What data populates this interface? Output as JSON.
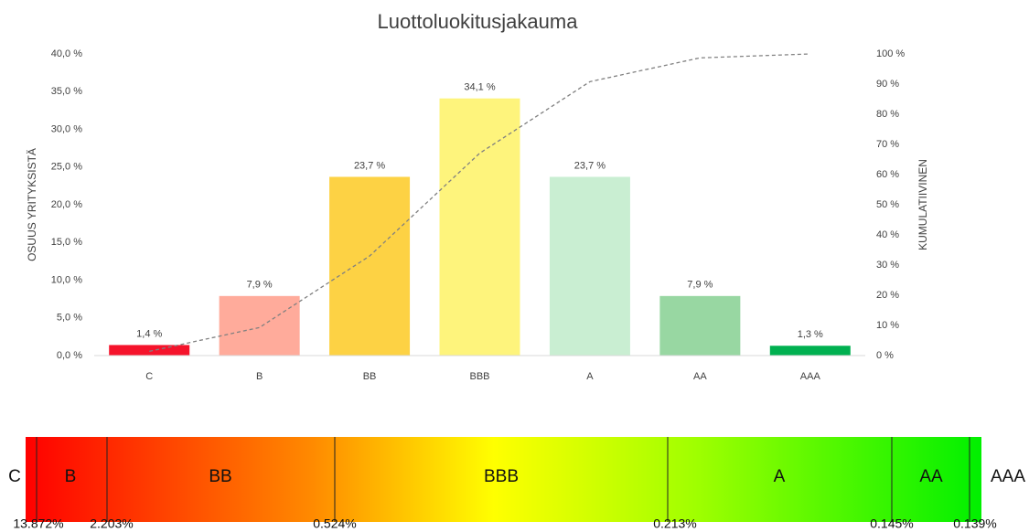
{
  "chart_data": {
    "type": "bar",
    "title": "Luottoluokitusjakauma",
    "y_label": "OSUUS YRITYKSISTÄ",
    "y2_label": "KUMULATIIVINEN",
    "categories": [
      "C",
      "B",
      "BB",
      "BBB",
      "A",
      "AA",
      "AAA"
    ],
    "series": [
      {
        "type": "bar",
        "colors": [
          "#f5132b",
          "#ffab9b",
          "#fdd244",
          "#fef47c",
          "#c9eed2",
          "#98d7a2",
          "#00b050"
        ],
        "values": [
          1.4,
          7.9,
          23.7,
          34.1,
          23.7,
          7.9,
          1.3
        ],
        "value_labels": [
          "1,4 %",
          "7,9 %",
          "23,7 %",
          "34,1 %",
          "23,7 %",
          "7,9 %",
          "1,3 %"
        ]
      },
      {
        "type": "line",
        "axis": "y2",
        "color": "#808080",
        "dashed": true,
        "values": [
          1.4,
          9.3,
          33.0,
          67.1,
          90.8,
          98.7,
          100
        ]
      }
    ],
    "ylim": [
      0,
      40
    ],
    "yticks": [
      {
        "value": 0,
        "label": "0,0 %"
      },
      {
        "value": 5,
        "label": "5,0 %"
      },
      {
        "value": 10,
        "label": "10,0 %"
      },
      {
        "value": 15,
        "label": "15,0 %"
      },
      {
        "value": 20,
        "label": "20,0 %"
      },
      {
        "value": 25,
        "label": "25,0 %"
      },
      {
        "value": 30,
        "label": "30,0 %"
      },
      {
        "value": 35,
        "label": "35,0 %"
      },
      {
        "value": 40,
        "label": "40,0 %"
      }
    ],
    "y2lim": [
      0,
      100
    ],
    "y2ticks": [
      {
        "value": 0,
        "label": "0 %"
      },
      {
        "value": 10,
        "label": "10 %"
      },
      {
        "value": 20,
        "label": "20 %"
      },
      {
        "value": 30,
        "label": "30 %"
      },
      {
        "value": 40,
        "label": "40 %"
      },
      {
        "value": 50,
        "label": "50 %"
      },
      {
        "value": 60,
        "label": "60 %"
      },
      {
        "value": 70,
        "label": "70 %"
      },
      {
        "value": 80,
        "label": "80 %"
      },
      {
        "value": 90,
        "label": "90 %"
      },
      {
        "value": 100,
        "label": "100 %"
      }
    ]
  },
  "scale": {
    "segments": [
      "C",
      "B",
      "BB",
      "BBB",
      "A",
      "AA",
      "AAA"
    ],
    "thresholds": [
      "13.872%",
      "2.203%",
      "0.524%",
      "0.213%",
      "0.145%",
      "0.139%"
    ]
  }
}
